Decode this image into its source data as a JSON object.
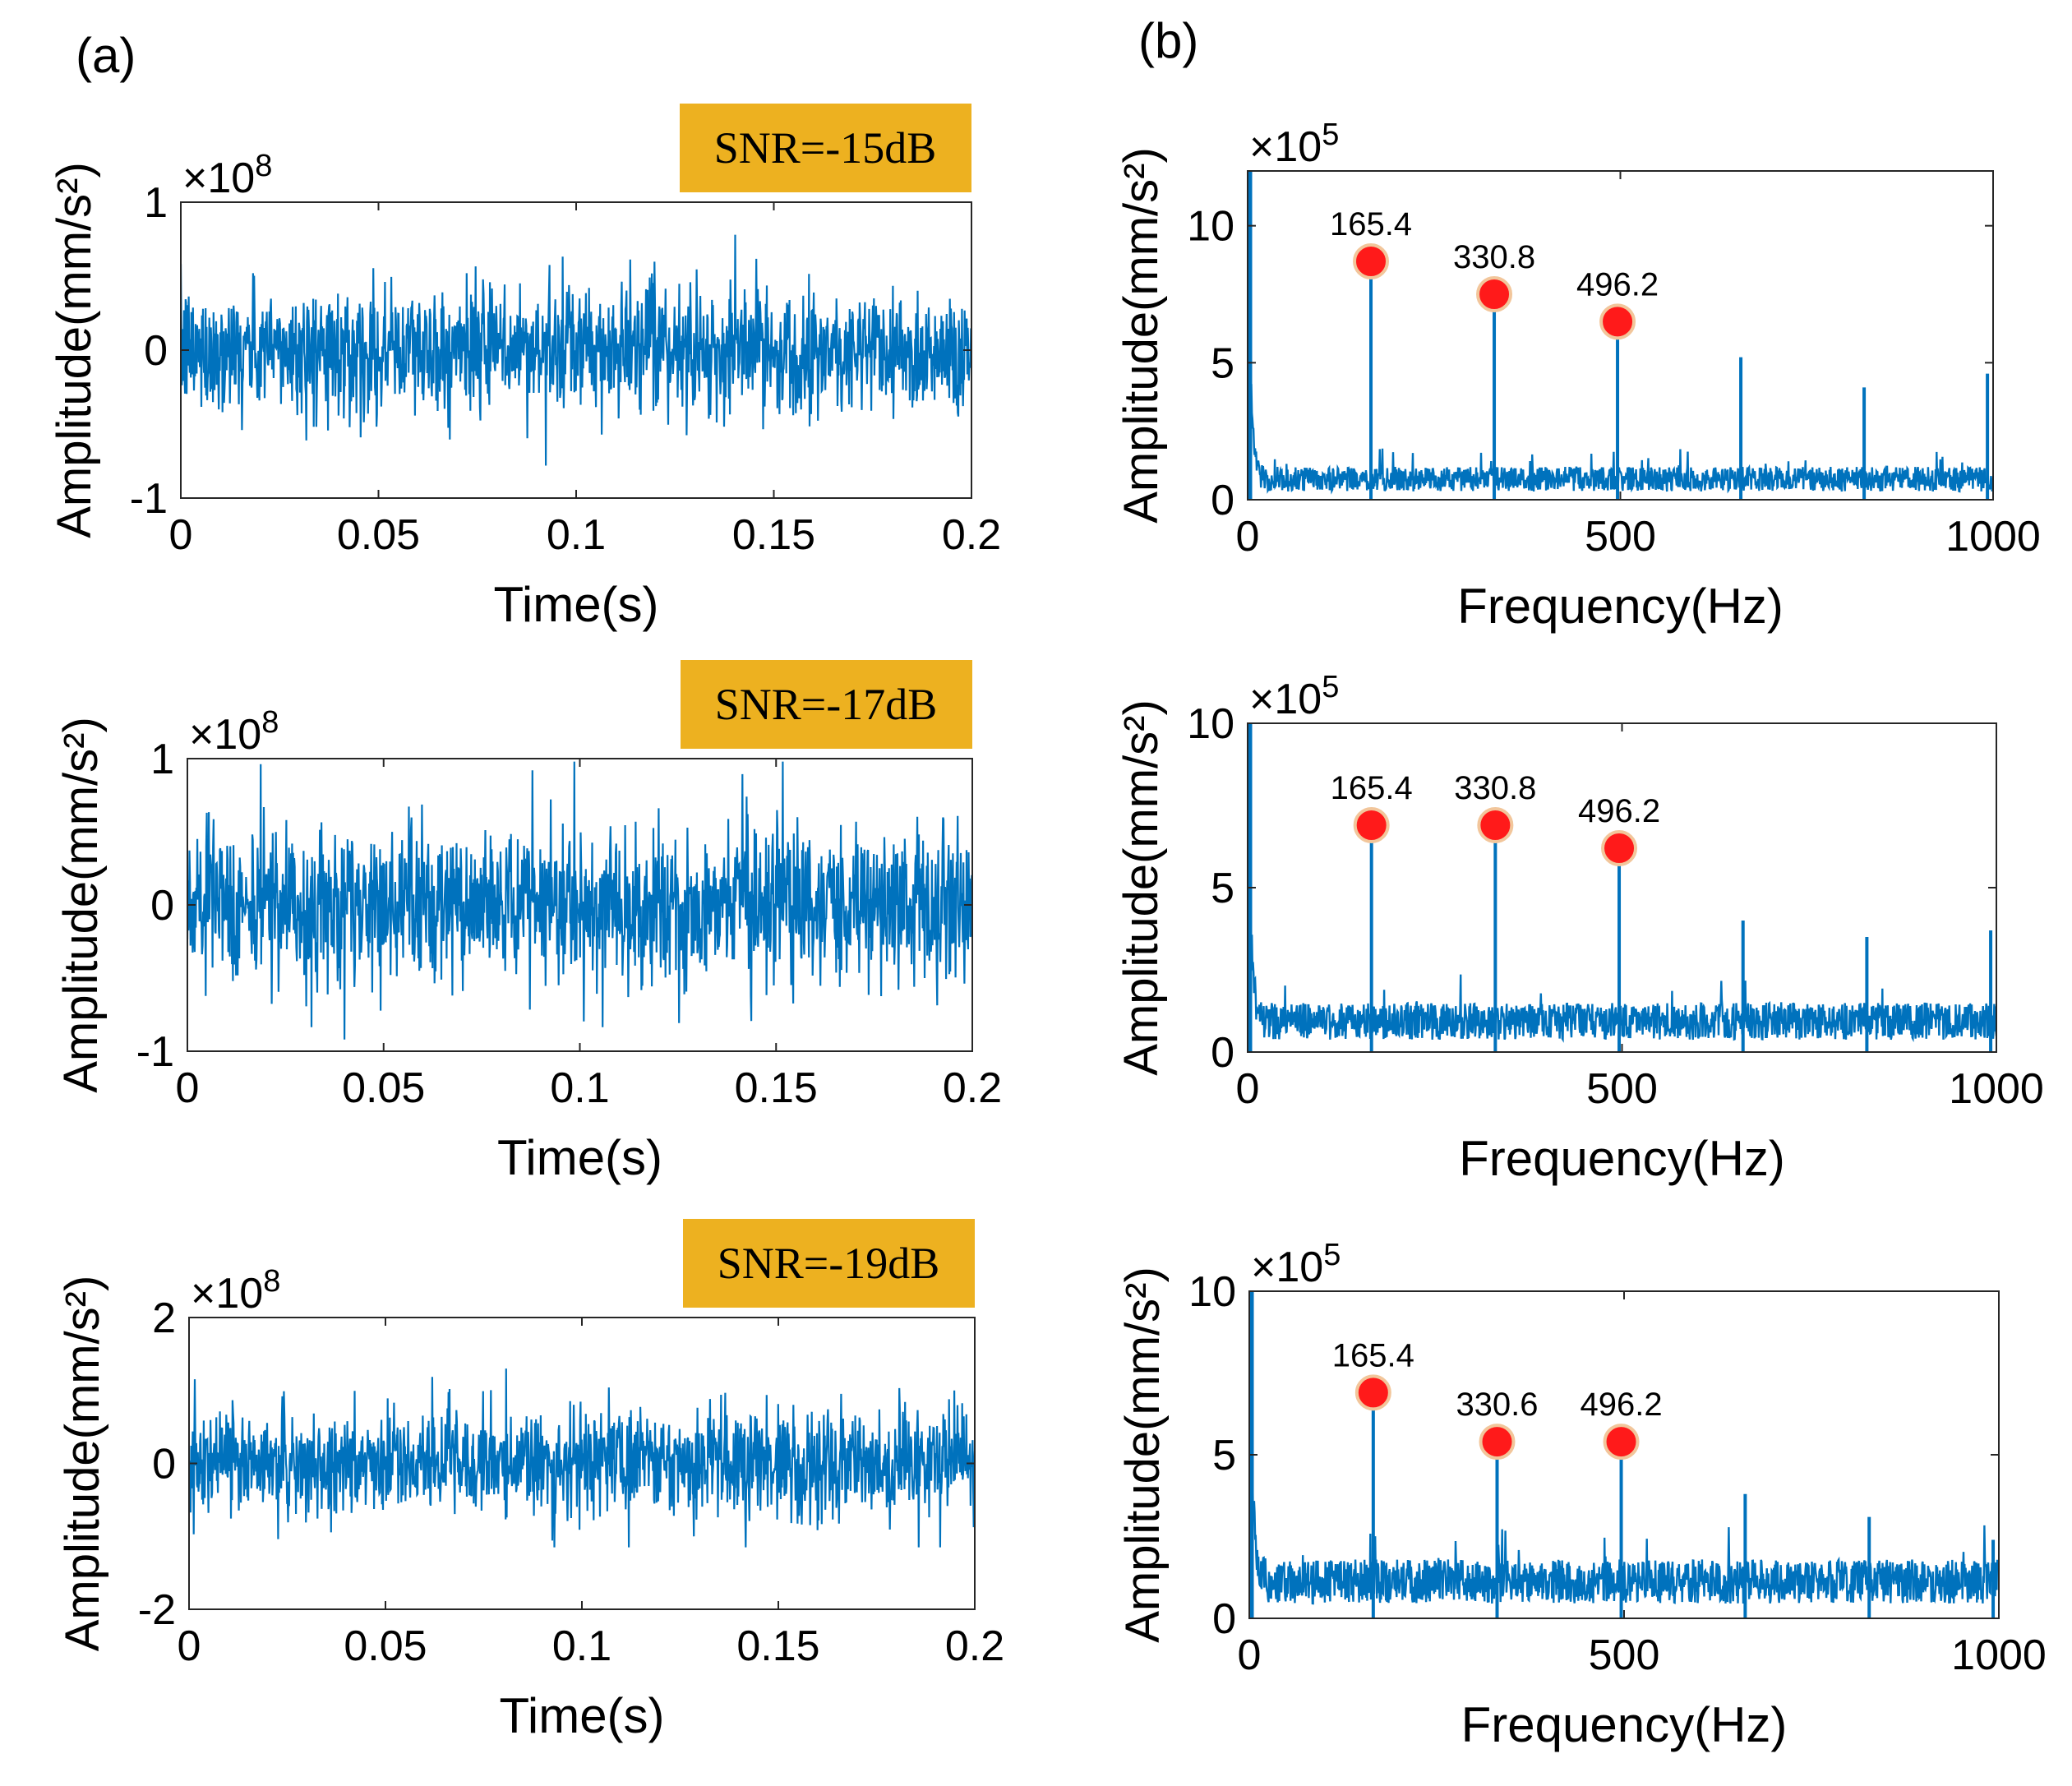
{
  "figure": {
    "panel_labels": [
      "(a)",
      "(b)"
    ]
  },
  "colors": {
    "signal": "#0072BD",
    "marker_fill": "#FF1A1A",
    "marker_edge": "#F2C69B",
    "snr_box": "#EDB120"
  },
  "chart_data": [
    {
      "type": "line",
      "panel": "a",
      "row": 0,
      "title": "",
      "xlabel": "Time(s)",
      "ylabel": "Amplitude(mm/s²)",
      "exponent_label": "×10",
      "exponent": "8",
      "xlim": [
        0,
        0.2
      ],
      "ylim": [
        -1,
        1
      ],
      "xticks": [
        "0",
        "0.05",
        "0.1",
        "0.15",
        "0.2"
      ],
      "yticks": [
        "-1",
        "0",
        "1"
      ],
      "noise": {
        "rms": 0.21,
        "peak_max": 0.78,
        "peak_min": -0.9
      },
      "snr_label": "SNR=-15dB"
    },
    {
      "type": "line",
      "panel": "a",
      "row": 1,
      "title": "",
      "xlabel": "Time(s)",
      "ylabel": "Amplitude(mm/s²)",
      "exponent_label": "×10",
      "exponent": "8",
      "xlim": [
        0,
        0.2
      ],
      "ylim": [
        -1,
        1
      ],
      "xticks": [
        "0",
        "0.05",
        "0.1",
        "0.15",
        "0.2"
      ],
      "yticks": [
        "-1",
        "0",
        "1"
      ],
      "noise": {
        "rms": 0.26,
        "peak_max": 0.98,
        "peak_min": -0.92
      },
      "snr_label": "SNR=-17dB"
    },
    {
      "type": "line",
      "panel": "a",
      "row": 2,
      "title": "",
      "xlabel": "Time(s)",
      "ylabel": "Amplitude(mm/s²)",
      "exponent_label": "×10",
      "exponent": "8",
      "xlim": [
        0,
        0.2
      ],
      "ylim": [
        -2,
        2
      ],
      "xticks": [
        "0",
        "0.05",
        "0.1",
        "0.15",
        "0.2"
      ],
      "yticks": [
        "-2",
        "0",
        "2"
      ],
      "noise": {
        "rms": 0.36,
        "peak_max": 1.3,
        "peak_min": -1.15
      },
      "snr_label": "SNR=-19dB"
    },
    {
      "type": "line",
      "panel": "b",
      "row": 0,
      "title": "",
      "xlabel": "Frequency(Hz)",
      "ylabel": "Amplitude(mm/s²)",
      "exponent_label": "×10",
      "exponent": "5",
      "xlim": [
        0,
        1000
      ],
      "ylim": [
        0,
        12
      ],
      "xticks": [
        "0",
        "500",
        "1000"
      ],
      "yticks": [
        "0",
        "5",
        "10"
      ],
      "dc_peak": 12,
      "noise_floor": 1.2,
      "peaks": [
        {
          "x": 165.4,
          "y": 8.7
        },
        {
          "x": 330.8,
          "y": 7.5
        },
        {
          "x": 496.2,
          "y": 6.5
        },
        {
          "x": 661.6,
          "y": 5.2
        },
        {
          "x": 827.0,
          "y": 4.1
        },
        {
          "x": 992.4,
          "y": 4.6
        }
      ],
      "markers": [
        {
          "x": 165.4,
          "y": 8.7,
          "label": "165.4"
        },
        {
          "x": 330.8,
          "y": 7.5,
          "label": "330.8"
        },
        {
          "x": 496.2,
          "y": 6.5,
          "label": "496.2"
        }
      ]
    },
    {
      "type": "line",
      "panel": "b",
      "row": 1,
      "title": "",
      "xlabel": "Frequency(Hz)",
      "ylabel": "Amplitude(mm/s²)",
      "exponent_label": "×10",
      "exponent": "5",
      "xlim": [
        0,
        1000
      ],
      "ylim": [
        0,
        10
      ],
      "xticks": [
        "0",
        "500",
        "1000"
      ],
      "yticks": [
        "0",
        "5",
        "10"
      ],
      "dc_peak": 10,
      "noise_floor": 1.5,
      "peaks": [
        {
          "x": 165.4,
          "y": 6.9
        },
        {
          "x": 330.8,
          "y": 6.9
        },
        {
          "x": 496.2,
          "y": 6.2
        },
        {
          "x": 661.6,
          "y": 4.0
        },
        {
          "x": 827.0,
          "y": 3.5
        },
        {
          "x": 992.4,
          "y": 3.7
        }
      ],
      "markers": [
        {
          "x": 165.4,
          "y": 6.9,
          "label": "165.4"
        },
        {
          "x": 330.8,
          "y": 6.9,
          "label": "330.8"
        },
        {
          "x": 496.2,
          "y": 6.2,
          "label": "496.2"
        }
      ]
    },
    {
      "type": "line",
      "panel": "b",
      "row": 2,
      "title": "",
      "xlabel": "Frequency(Hz)",
      "ylabel": "Amplitude(mm/s²)",
      "exponent_label": "×10",
      "exponent": "5",
      "xlim": [
        0,
        1000
      ],
      "ylim": [
        0,
        10
      ],
      "xticks": [
        "0",
        "500",
        "1000"
      ],
      "yticks": [
        "0",
        "5",
        "10"
      ],
      "dc_peak": 10,
      "noise_floor": 1.8,
      "peaks": [
        {
          "x": 165.4,
          "y": 6.9
        },
        {
          "x": 330.6,
          "y": 5.4
        },
        {
          "x": 496.2,
          "y": 5.4
        },
        {
          "x": 661.6,
          "y": 3.8
        },
        {
          "x": 827.0,
          "y": 3.1
        },
        {
          "x": 992.4,
          "y": 2.4
        }
      ],
      "markers": [
        {
          "x": 165.4,
          "y": 6.9,
          "label": "165.4"
        },
        {
          "x": 330.6,
          "y": 5.4,
          "label": "330.6"
        },
        {
          "x": 496.2,
          "y": 5.4,
          "label": "496.2"
        }
      ]
    }
  ]
}
